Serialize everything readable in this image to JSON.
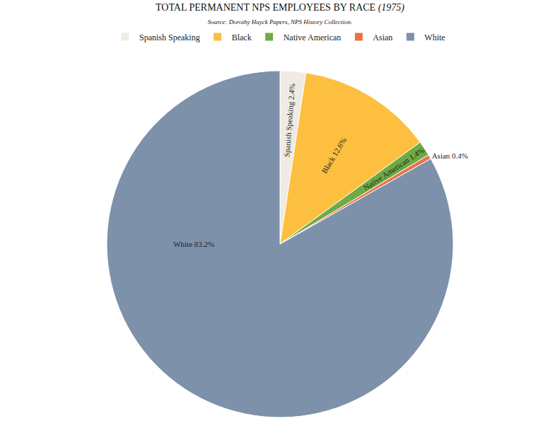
{
  "chart_data": {
    "type": "pie",
    "title": "TOTAL PERMANENT NPS EMPLOYEES BY RACE (1975)",
    "subtitle": "Source: Dorothy Huyck Papers, NPS History Collection.",
    "categories": [
      "Spanish Speaking",
      "Black",
      "Native American",
      "Asian",
      "White"
    ],
    "values": [
      2.4,
      12.6,
      1.4,
      0.4,
      83.2
    ],
    "value_labels": [
      "Spanish Speaking 2.4%",
      "Black 12.6%",
      "Native American 1.4%",
      "Asian 0.4%",
      "White 83.2%"
    ],
    "colors": [
      "#efebe2",
      "#fcbf3f",
      "#6faa45",
      "#e9714b",
      "#7d91ab"
    ],
    "data_labels": true,
    "legend": "top"
  }
}
